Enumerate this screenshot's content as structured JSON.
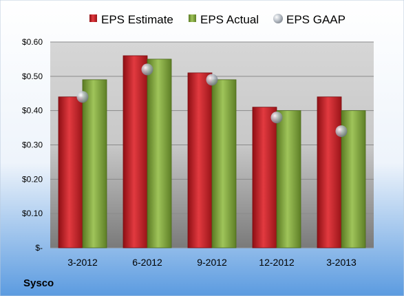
{
  "chart_data": {
    "type": "bar",
    "categories": [
      "3-2012",
      "6-2012",
      "9-2012",
      "12-2012",
      "3-2013"
    ],
    "series": [
      {
        "name": "EPS Estimate",
        "kind": "bar",
        "color": "#c0262c",
        "values": [
          0.44,
          0.56,
          0.51,
          0.41,
          0.44
        ]
      },
      {
        "name": "EPS Actual",
        "kind": "bar",
        "color": "#7f9f3c",
        "values": [
          0.49,
          0.55,
          0.49,
          0.4,
          0.4
        ]
      },
      {
        "name": "EPS GAAP",
        "kind": "marker",
        "color": "#9ba3ad",
        "values": [
          0.44,
          0.52,
          0.49,
          0.38,
          0.34
        ]
      }
    ],
    "ylim": [
      0,
      0.6
    ],
    "yticks": [
      0,
      0.1,
      0.2,
      0.3,
      0.4,
      0.5,
      0.6
    ],
    "ytick_labels": [
      "$-",
      "$0.10",
      "$0.20",
      "$0.30",
      "$0.40",
      "$0.50",
      "$0.60"
    ],
    "grid": true,
    "legend_position": "top"
  },
  "footer": {
    "company": "Sysco"
  },
  "colors": {
    "background_top": "#ffffff",
    "background_bottom": "#5b9be0",
    "plot_top": "#d0d0d0",
    "plot_bottom": "#808080"
  }
}
